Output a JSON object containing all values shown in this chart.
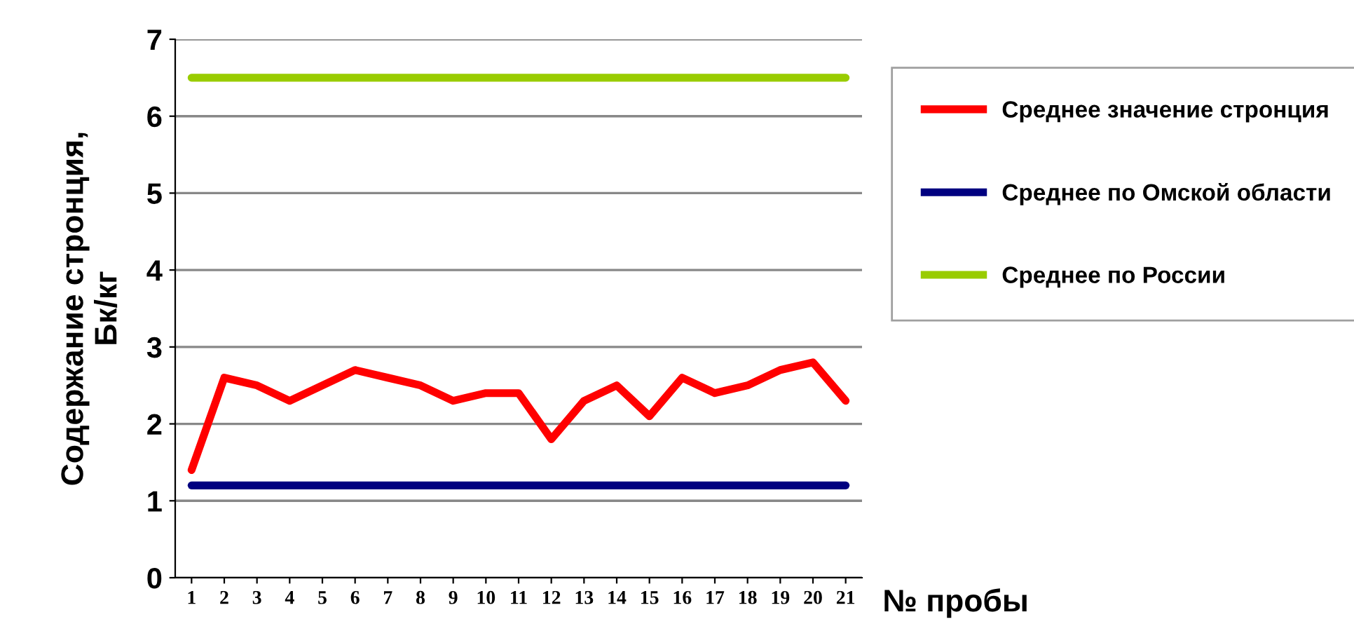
{
  "chart_data": {
    "type": "line",
    "xlabel": "№ пробы",
    "ylabel": "Содержание стронция,\nБк/кг",
    "categories": [
      "1",
      "2",
      "3",
      "4",
      "5",
      "6",
      "7",
      "8",
      "9",
      "10",
      "11",
      "12",
      "13",
      "14",
      "15",
      "16",
      "17",
      "18",
      "19",
      "20",
      "21"
    ],
    "series": [
      {
        "name": "Среднее значение стронция",
        "color": "#ff0000",
        "values": [
          1.4,
          2.6,
          2.5,
          2.3,
          2.5,
          2.7,
          2.6,
          2.5,
          2.3,
          2.4,
          2.4,
          1.8,
          2.3,
          2.5,
          2.1,
          2.6,
          2.4,
          2.5,
          2.7,
          2.8,
          2.3
        ]
      },
      {
        "name": "Среднее по Омской области",
        "color": "#000080",
        "values": [
          1.2,
          1.2,
          1.2,
          1.2,
          1.2,
          1.2,
          1.2,
          1.2,
          1.2,
          1.2,
          1.2,
          1.2,
          1.2,
          1.2,
          1.2,
          1.2,
          1.2,
          1.2,
          1.2,
          1.2,
          1.2
        ]
      },
      {
        "name": "Среднее по России",
        "color": "#99cc00",
        "values": [
          6.5,
          6.5,
          6.5,
          6.5,
          6.5,
          6.5,
          6.5,
          6.5,
          6.5,
          6.5,
          6.5,
          6.5,
          6.5,
          6.5,
          6.5,
          6.5,
          6.5,
          6.5,
          6.5,
          6.5,
          6.5
        ]
      }
    ],
    "ylim": [
      0,
      7
    ],
    "yticks": [
      0,
      1,
      2,
      3,
      4,
      5,
      6,
      7
    ],
    "grid": "y",
    "legend": "right",
    "marker": "none",
    "line_style": "solid"
  }
}
